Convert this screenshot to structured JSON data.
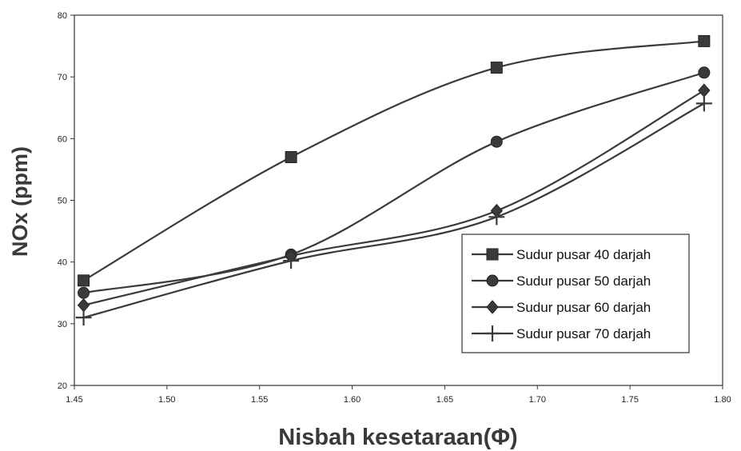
{
  "chart_data": {
    "type": "line",
    "title": "",
    "xlabel": "Nisbah kesetaraan(Φ)",
    "ylabel": "NOx (ppm)",
    "xlim": [
      1.45,
      1.8
    ],
    "ylim": [
      20,
      80
    ],
    "x_ticks": [
      "1.45",
      "1.50",
      "1.55",
      "1.60",
      "1.65",
      "1.70",
      "1.75",
      "1.80"
    ],
    "y_ticks": [
      "20",
      "30",
      "40",
      "50",
      "60",
      "70",
      "80"
    ],
    "grid": false,
    "legend_position": "lower-right",
    "x": [
      1.455,
      1.567,
      1.678,
      1.79
    ],
    "series": [
      {
        "name": "Sudur pusar 40 darjah",
        "marker": "square",
        "values": [
          37,
          57,
          71.5,
          75.8
        ]
      },
      {
        "name": "Sudur pusar 50 darjah",
        "marker": "circle",
        "values": [
          35,
          41.2,
          59.5,
          70.7
        ]
      },
      {
        "name": "Sudur pusar 60 darjah",
        "marker": "diamond",
        "values": [
          33,
          41,
          48.3,
          67.8
        ]
      },
      {
        "name": "Sudur pusar 70 darjah",
        "marker": "plus",
        "values": [
          31,
          40.2,
          47.3,
          65.7
        ]
      }
    ],
    "line_color": "#3a3a3a"
  }
}
